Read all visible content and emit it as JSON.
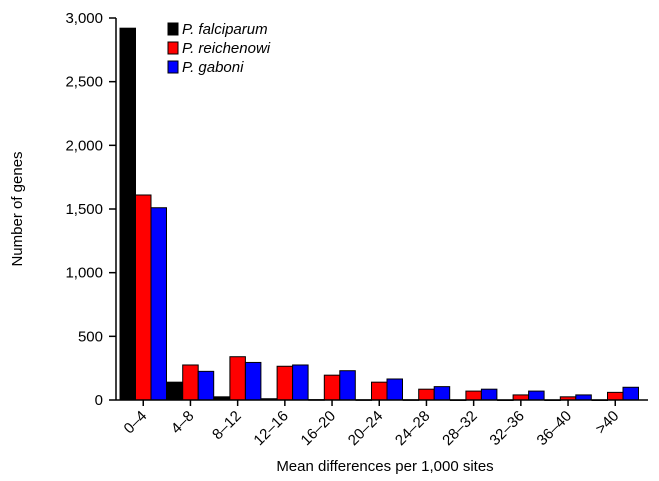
{
  "chart_data": {
    "type": "bar",
    "title": "",
    "xlabel": "Mean differences per 1,000 sites",
    "ylabel": "Number of genes",
    "ylim": [
      0,
      3000
    ],
    "yticks": [
      0,
      500,
      1000,
      1500,
      2000,
      2500,
      3000
    ],
    "ytick_labels": [
      "0",
      "500",
      "1,000",
      "1,500",
      "2,000",
      "2,500",
      "3,000"
    ],
    "categories": [
      "0–4",
      "4–8",
      "8–12",
      "12–16",
      "16–20",
      "20–24",
      "24–28",
      "28–32",
      "32–36",
      "36–40",
      ">40"
    ],
    "series": [
      {
        "name": "P. falciparum",
        "color": "#000000",
        "values": [
          2920,
          140,
          25,
          10,
          3,
          2,
          2,
          1,
          1,
          1,
          1
        ]
      },
      {
        "name": "P. reichenowi",
        "color": "#ff0000",
        "values": [
          1610,
          275,
          340,
          265,
          195,
          140,
          85,
          70,
          40,
          25,
          60
        ]
      },
      {
        "name": "P. gaboni",
        "color": "#0000ff",
        "values": [
          1510,
          225,
          295,
          275,
          230,
          165,
          105,
          85,
          70,
          40,
          100
        ]
      }
    ],
    "legend_position": "top-left",
    "grid": false
  }
}
